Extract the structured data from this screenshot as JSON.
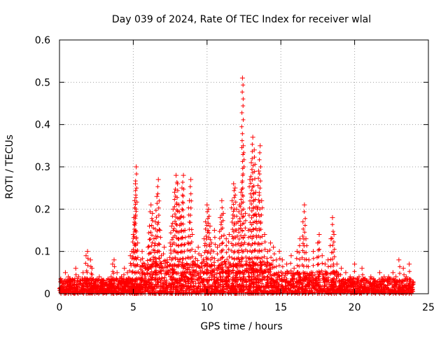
{
  "chart_data": {
    "type": "scatter",
    "title": "Day 039 of 2024, Rate Of TEC Index for receiver wlal",
    "xlabel": "GPS time / hours",
    "ylabel": "ROTI / TECUs",
    "xlim": [
      0,
      25
    ],
    "ylim": [
      0,
      0.6
    ],
    "x_ticks": [
      "0",
      "5",
      "10",
      "15",
      "20",
      "25"
    ],
    "y_ticks": [
      "0",
      "0.1",
      "0.2",
      "0.3",
      "0.4",
      "0.5",
      "0.6"
    ],
    "grid": true,
    "marker": "+",
    "color": "#ff0000",
    "series": [
      {
        "points": [
          [
            0.1,
            0.01
          ],
          [
            0.3,
            0.03
          ],
          [
            0.4,
            0.05
          ],
          [
            0.6,
            0.04
          ],
          [
            0.8,
            0.02
          ],
          [
            1.0,
            0.03
          ],
          [
            1.1,
            0.06
          ],
          [
            1.3,
            0.04
          ],
          [
            1.6,
            0.05
          ],
          [
            1.8,
            0.09
          ],
          [
            1.9,
            0.1
          ],
          [
            2.1,
            0.08
          ],
          [
            2.2,
            0.06
          ],
          [
            2.4,
            0.03
          ],
          [
            2.7,
            0.04
          ],
          [
            2.9,
            0.03
          ],
          [
            3.2,
            0.02
          ],
          [
            3.5,
            0.04
          ],
          [
            3.6,
            0.07
          ],
          [
            3.7,
            0.08
          ],
          [
            3.9,
            0.05
          ],
          [
            4.2,
            0.04
          ],
          [
            4.4,
            0.06
          ],
          [
            4.6,
            0.05
          ],
          [
            4.8,
            0.09
          ],
          [
            4.9,
            0.1
          ],
          [
            5.0,
            0.14
          ],
          [
            5.05,
            0.18
          ],
          [
            5.1,
            0.22
          ],
          [
            5.15,
            0.26
          ],
          [
            5.2,
            0.3
          ],
          [
            5.3,
            0.12
          ],
          [
            5.5,
            0.08
          ],
          [
            5.6,
            0.1
          ],
          [
            5.8,
            0.06
          ],
          [
            6.0,
            0.11
          ],
          [
            6.1,
            0.16
          ],
          [
            6.2,
            0.21
          ],
          [
            6.3,
            0.19
          ],
          [
            6.4,
            0.13
          ],
          [
            6.5,
            0.17
          ],
          [
            6.6,
            0.23
          ],
          [
            6.7,
            0.27
          ],
          [
            6.8,
            0.15
          ],
          [
            6.9,
            0.09
          ],
          [
            7.1,
            0.11
          ],
          [
            7.3,
            0.08
          ],
          [
            7.5,
            0.12
          ],
          [
            7.6,
            0.16
          ],
          [
            7.7,
            0.2
          ],
          [
            7.8,
            0.24
          ],
          [
            7.9,
            0.28
          ],
          [
            8.0,
            0.26
          ],
          [
            8.1,
            0.21
          ],
          [
            8.2,
            0.18
          ],
          [
            8.3,
            0.25
          ],
          [
            8.4,
            0.28
          ],
          [
            8.5,
            0.15
          ],
          [
            8.7,
            0.12
          ],
          [
            8.8,
            0.22
          ],
          [
            8.9,
            0.27
          ],
          [
            9.0,
            0.14
          ],
          [
            9.2,
            0.1
          ],
          [
            9.4,
            0.11
          ],
          [
            9.6,
            0.09
          ],
          [
            9.8,
            0.13
          ],
          [
            9.9,
            0.17
          ],
          [
            10.0,
            0.21
          ],
          [
            10.1,
            0.2
          ],
          [
            10.2,
            0.16
          ],
          [
            10.3,
            0.12
          ],
          [
            10.5,
            0.15
          ],
          [
            10.7,
            0.11
          ],
          [
            10.9,
            0.18
          ],
          [
            11.0,
            0.22
          ],
          [
            11.1,
            0.19
          ],
          [
            11.3,
            0.13
          ],
          [
            11.5,
            0.14
          ],
          [
            11.7,
            0.22
          ],
          [
            11.8,
            0.26
          ],
          [
            11.9,
            0.25
          ],
          [
            12.0,
            0.2
          ],
          [
            12.1,
            0.17
          ],
          [
            12.2,
            0.21
          ],
          [
            12.3,
            0.24
          ],
          [
            12.4,
            0.51
          ],
          [
            12.45,
            0.35
          ],
          [
            12.6,
            0.19
          ],
          [
            12.8,
            0.15
          ],
          [
            12.9,
            0.27
          ],
          [
            13.0,
            0.31
          ],
          [
            13.1,
            0.37
          ],
          [
            13.2,
            0.34
          ],
          [
            13.3,
            0.24
          ],
          [
            13.4,
            0.2
          ],
          [
            13.5,
            0.29
          ],
          [
            13.6,
            0.35
          ],
          [
            13.7,
            0.22
          ],
          [
            13.9,
            0.14
          ],
          [
            14.1,
            0.1
          ],
          [
            14.3,
            0.12
          ],
          [
            14.5,
            0.11
          ],
          [
            14.7,
            0.08
          ],
          [
            14.9,
            0.1
          ],
          [
            15.1,
            0.08
          ],
          [
            15.4,
            0.07
          ],
          [
            15.7,
            0.09
          ],
          [
            15.9,
            0.06
          ],
          [
            16.1,
            0.1
          ],
          [
            16.3,
            0.13
          ],
          [
            16.5,
            0.17
          ],
          [
            16.6,
            0.21
          ],
          [
            16.7,
            0.13
          ],
          [
            16.9,
            0.08
          ],
          [
            17.2,
            0.1
          ],
          [
            17.5,
            0.12
          ],
          [
            17.6,
            0.14
          ],
          [
            17.8,
            0.09
          ],
          [
            18.0,
            0.07
          ],
          [
            18.2,
            0.08
          ],
          [
            18.4,
            0.13
          ],
          [
            18.5,
            0.18
          ],
          [
            18.6,
            0.14
          ],
          [
            18.8,
            0.07
          ],
          [
            19.1,
            0.06
          ],
          [
            19.4,
            0.05
          ],
          [
            19.7,
            0.04
          ],
          [
            20.0,
            0.07
          ],
          [
            20.3,
            0.04
          ],
          [
            20.5,
            0.06
          ],
          [
            20.8,
            0.03
          ],
          [
            21.1,
            0.04
          ],
          [
            21.4,
            0.03
          ],
          [
            21.7,
            0.05
          ],
          [
            22.0,
            0.04
          ],
          [
            22.3,
            0.04
          ],
          [
            22.6,
            0.05
          ],
          [
            22.8,
            0.04
          ],
          [
            23.0,
            0.08
          ],
          [
            23.3,
            0.06
          ],
          [
            23.5,
            0.04
          ],
          [
            23.7,
            0.07
          ],
          [
            23.9,
            0.02
          ]
        ]
      }
    ]
  }
}
